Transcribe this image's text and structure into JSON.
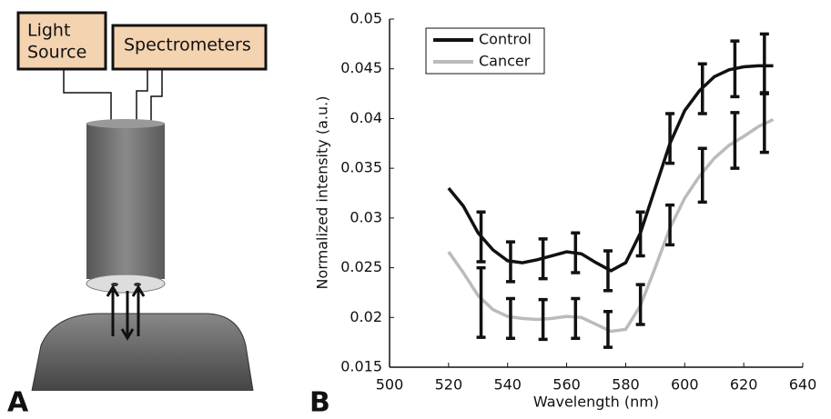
{
  "diagram": {
    "boxes": [
      {
        "lines": [
          "Light",
          "Source"
        ]
      },
      {
        "lines": [
          "Spectrometers"
        ]
      }
    ],
    "panel_labels": [
      "A",
      "B"
    ]
  },
  "chart_data": {
    "type": "line",
    "x_label": "Wavelength (nm)",
    "y_label": "Normalized intensity (a.u.)",
    "xlim": [
      500,
      640
    ],
    "xticks": [
      500,
      520,
      540,
      560,
      580,
      600,
      620,
      640
    ],
    "ylim": [
      0.015,
      0.05
    ],
    "yticks": [
      0.015,
      0.02,
      0.025,
      0.03,
      0.035,
      0.04,
      0.045,
      0.05
    ],
    "legend": "upper left",
    "series": [
      {
        "name": "Control",
        "color": "#111111",
        "x": [
          520,
          525,
          530,
          535,
          540,
          545,
          550,
          555,
          560,
          565,
          570,
          575,
          580,
          585,
          590,
          595,
          600,
          605,
          610,
          615,
          620,
          625,
          630
        ],
        "values": [
          0.033,
          0.0312,
          0.0285,
          0.0268,
          0.0257,
          0.0255,
          0.0258,
          0.0262,
          0.0266,
          0.0264,
          0.0255,
          0.0247,
          0.0255,
          0.0285,
          0.033,
          0.0375,
          0.0408,
          0.0428,
          0.0442,
          0.0449,
          0.0452,
          0.0453,
          0.0453
        ],
        "errorbars": {
          "x": [
            531,
            541,
            552,
            563,
            574,
            585,
            595,
            606,
            617,
            627
          ],
          "values": [
            0.0281,
            0.0256,
            0.0259,
            0.0265,
            0.0247,
            0.0284,
            0.038,
            0.043,
            0.045,
            0.0455
          ],
          "errors": [
            0.0025,
            0.002,
            0.002,
            0.002,
            0.002,
            0.0022,
            0.0025,
            0.0025,
            0.0028,
            0.003
          ]
        }
      },
      {
        "name": "Cancer",
        "color": "#bbbbbb",
        "x": [
          520,
          525,
          530,
          535,
          540,
          545,
          550,
          555,
          560,
          565,
          570,
          575,
          580,
          585,
          590,
          595,
          600,
          605,
          610,
          615,
          620,
          625,
          630
        ],
        "values": [
          0.0266,
          0.0245,
          0.0222,
          0.0208,
          0.0201,
          0.0199,
          0.0198,
          0.0199,
          0.0201,
          0.02,
          0.0193,
          0.0186,
          0.0188,
          0.0212,
          0.025,
          0.029,
          0.032,
          0.0342,
          0.036,
          0.0373,
          0.0382,
          0.0392,
          0.0399
        ],
        "errorbars": {
          "x": [
            531,
            541,
            552,
            563,
            574,
            585,
            595,
            606,
            617,
            627
          ],
          "values": [
            0.0215,
            0.0199,
            0.0198,
            0.0199,
            0.0188,
            0.0213,
            0.0293,
            0.0343,
            0.0378,
            0.0396
          ],
          "errors": [
            0.0035,
            0.002,
            0.002,
            0.002,
            0.0018,
            0.002,
            0.002,
            0.0027,
            0.0028,
            0.003
          ]
        }
      }
    ]
  }
}
